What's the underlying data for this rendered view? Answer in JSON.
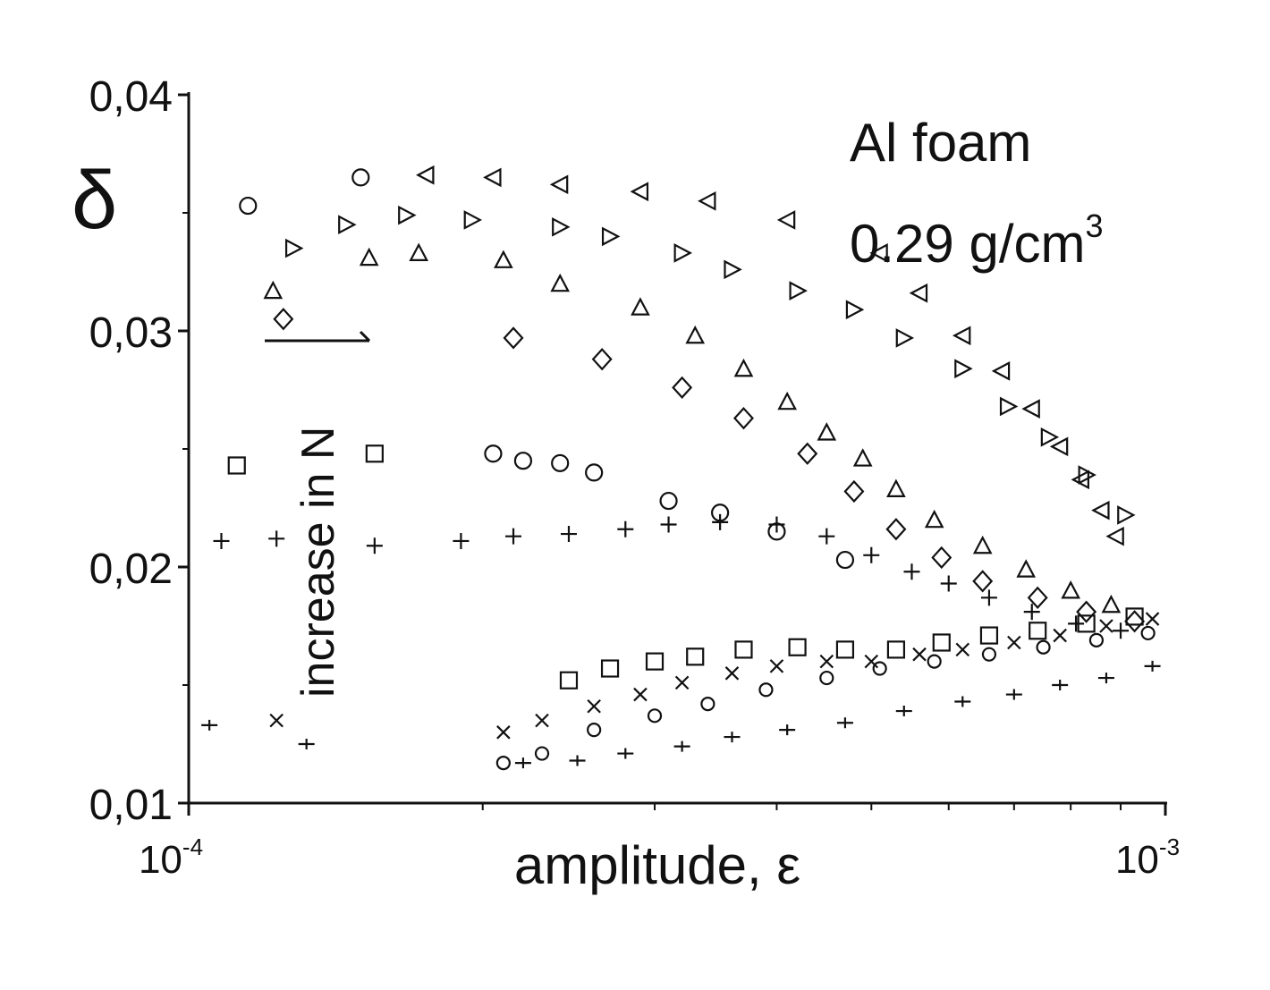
{
  "chart_data": {
    "type": "scatter",
    "title": "",
    "annotation": {
      "line1": "Al foam",
      "line2": "0.29 g/cm",
      "superscript": "3"
    },
    "xlabel": "amplitude, ε",
    "ylabel": "δ",
    "xscale": "log",
    "xlim": [
      0.0001,
      0.001
    ],
    "ylim": [
      0.01,
      0.04
    ],
    "x_ticks": [
      {
        "value": 0.0001,
        "base": "10",
        "exp": "-4"
      },
      {
        "value": 0.001,
        "base": "10",
        "exp": "-3"
      }
    ],
    "y_ticks": [
      {
        "value": 0.01,
        "label": "0,01"
      },
      {
        "value": 0.02,
        "label": "0,02"
      },
      {
        "value": 0.03,
        "label": "0,03"
      },
      {
        "value": 0.04,
        "label": "0,04"
      }
    ],
    "arrow_label": "increase in N",
    "grid": false,
    "legend": "none",
    "series": [
      {
        "marker": "circle",
        "points": [
          [
            0.000115,
            0.0353
          ],
          [
            0.00015,
            0.0365
          ],
          [
            0.000205,
            0.0248
          ],
          [
            0.00022,
            0.0245
          ],
          [
            0.00024,
            0.0244
          ],
          [
            0.00026,
            0.024
          ],
          [
            0.00031,
            0.0228
          ],
          [
            0.00035,
            0.0223
          ],
          [
            0.0004,
            0.0215
          ],
          [
            0.00047,
            0.0203
          ]
        ]
      },
      {
        "marker": "triangle-left",
        "points": [
          [
            0.000175,
            0.0366
          ],
          [
            0.000205,
            0.0365
          ],
          [
            0.00024,
            0.0362
          ],
          [
            0.00029,
            0.0359
          ],
          [
            0.00034,
            0.0355
          ],
          [
            0.00041,
            0.0347
          ],
          [
            0.00051,
            0.0333
          ],
          [
            0.00056,
            0.0316
          ],
          [
            0.00062,
            0.0298
          ],
          [
            0.00068,
            0.0283
          ],
          [
            0.00073,
            0.0267
          ],
          [
            0.00078,
            0.0251
          ],
          [
            0.00082,
            0.0237
          ],
          [
            0.00086,
            0.0224
          ],
          [
            0.00089,
            0.0213
          ]
        ]
      },
      {
        "marker": "triangle-right",
        "points": [
          [
            0.000128,
            0.0335
          ],
          [
            0.000145,
            0.0345
          ],
          [
            0.000167,
            0.0349
          ],
          [
            0.000195,
            0.0347
          ],
          [
            0.00024,
            0.0344
          ],
          [
            0.00027,
            0.034
          ],
          [
            0.00032,
            0.0333
          ],
          [
            0.00036,
            0.0326
          ],
          [
            0.00042,
            0.0317
          ],
          [
            0.00048,
            0.0309
          ],
          [
            0.00054,
            0.0297
          ],
          [
            0.00062,
            0.0284
          ],
          [
            0.00069,
            0.0268
          ],
          [
            0.00076,
            0.0255
          ],
          [
            0.00083,
            0.0239
          ],
          [
            0.00091,
            0.0222
          ]
        ]
      },
      {
        "marker": "triangle-up",
        "points": [
          [
            0.000122,
            0.0317
          ],
          [
            0.000153,
            0.0331
          ],
          [
            0.000172,
            0.0333
          ],
          [
            0.00021,
            0.033
          ],
          [
            0.00024,
            0.032
          ],
          [
            0.00029,
            0.031
          ],
          [
            0.00033,
            0.0298
          ],
          [
            0.00037,
            0.0284
          ],
          [
            0.00041,
            0.027
          ],
          [
            0.00045,
            0.0257
          ],
          [
            0.00049,
            0.0246
          ],
          [
            0.00053,
            0.0233
          ],
          [
            0.00058,
            0.022
          ],
          [
            0.00065,
            0.0209
          ],
          [
            0.00072,
            0.0199
          ],
          [
            0.0008,
            0.019
          ],
          [
            0.00088,
            0.0184
          ]
        ]
      },
      {
        "marker": "diamond",
        "points": [
          [
            0.000125,
            0.0305
          ],
          [
            0.000215,
            0.0297
          ],
          [
            0.000265,
            0.0288
          ],
          [
            0.00032,
            0.0276
          ],
          [
            0.00037,
            0.0263
          ],
          [
            0.00043,
            0.0248
          ],
          [
            0.00048,
            0.0232
          ],
          [
            0.00053,
            0.0216
          ],
          [
            0.00059,
            0.0204
          ],
          [
            0.00065,
            0.0194
          ],
          [
            0.00074,
            0.0187
          ],
          [
            0.00083,
            0.0181
          ],
          [
            0.00093,
            0.0177
          ]
        ]
      },
      {
        "marker": "cross",
        "points": [
          [
            0.000108,
            0.0211
          ],
          [
            0.000123,
            0.0212
          ],
          [
            0.000155,
            0.0209
          ],
          [
            0.00019,
            0.0211
          ],
          [
            0.000215,
            0.0213
          ],
          [
            0.000245,
            0.0214
          ],
          [
            0.00028,
            0.0216
          ],
          [
            0.00031,
            0.0218
          ],
          [
            0.00035,
            0.0219
          ],
          [
            0.0004,
            0.0218
          ],
          [
            0.00045,
            0.0213
          ],
          [
            0.0005,
            0.0205
          ],
          [
            0.00055,
            0.0198
          ],
          [
            0.0006,
            0.0193
          ],
          [
            0.00066,
            0.0187
          ],
          [
            0.00073,
            0.0181
          ],
          [
            0.00081,
            0.0176
          ],
          [
            0.0009,
            0.0173
          ]
        ]
      },
      {
        "marker": "square",
        "points": [
          [
            0.000112,
            0.0243
          ],
          [
            0.000155,
            0.0248
          ],
          [
            0.000245,
            0.0152
          ],
          [
            0.00027,
            0.0157
          ],
          [
            0.0003,
            0.016
          ],
          [
            0.00033,
            0.0162
          ],
          [
            0.00037,
            0.0165
          ],
          [
            0.00042,
            0.0166
          ],
          [
            0.00047,
            0.0165
          ],
          [
            0.00053,
            0.0165
          ],
          [
            0.00059,
            0.0168
          ],
          [
            0.00066,
            0.0171
          ],
          [
            0.00074,
            0.0173
          ],
          [
            0.00083,
            0.0176
          ],
          [
            0.00093,
            0.0179
          ]
        ]
      },
      {
        "marker": "x",
        "points": [
          [
            0.000123,
            0.0135
          ],
          [
            0.00021,
            0.013
          ],
          [
            0.00023,
            0.0135
          ],
          [
            0.00026,
            0.0141
          ],
          [
            0.00029,
            0.0146
          ],
          [
            0.00032,
            0.0151
          ],
          [
            0.00036,
            0.0155
          ],
          [
            0.0004,
            0.0158
          ],
          [
            0.00045,
            0.016
          ],
          [
            0.0005,
            0.016
          ],
          [
            0.00056,
            0.0163
          ],
          [
            0.00062,
            0.0165
          ],
          [
            0.0007,
            0.0168
          ],
          [
            0.00078,
            0.0171
          ],
          [
            0.00087,
            0.0175
          ],
          [
            0.00097,
            0.0178
          ]
        ]
      },
      {
        "marker": "plus",
        "points": [
          [
            0.000105,
            0.0133
          ],
          [
            0.000132,
            0.0125
          ],
          [
            0.00022,
            0.0117
          ],
          [
            0.00025,
            0.0118
          ],
          [
            0.00028,
            0.0121
          ],
          [
            0.00032,
            0.0124
          ],
          [
            0.00036,
            0.0128
          ],
          [
            0.00041,
            0.0131
          ],
          [
            0.00047,
            0.0134
          ],
          [
            0.00054,
            0.0139
          ],
          [
            0.00062,
            0.0143
          ],
          [
            0.0007,
            0.0146
          ],
          [
            0.00078,
            0.015
          ],
          [
            0.00087,
            0.0153
          ],
          [
            0.00097,
            0.0158
          ]
        ]
      },
      {
        "marker": "circle-small",
        "points": [
          [
            0.00021,
            0.0117
          ],
          [
            0.00023,
            0.0121
          ],
          [
            0.00026,
            0.0131
          ],
          [
            0.0003,
            0.0137
          ],
          [
            0.00034,
            0.0142
          ],
          [
            0.00039,
            0.0148
          ],
          [
            0.00045,
            0.0153
          ],
          [
            0.00051,
            0.0157
          ],
          [
            0.00058,
            0.016
          ],
          [
            0.00066,
            0.0163
          ],
          [
            0.00075,
            0.0166
          ],
          [
            0.00085,
            0.0169
          ],
          [
            0.00096,
            0.0172
          ]
        ]
      }
    ]
  }
}
